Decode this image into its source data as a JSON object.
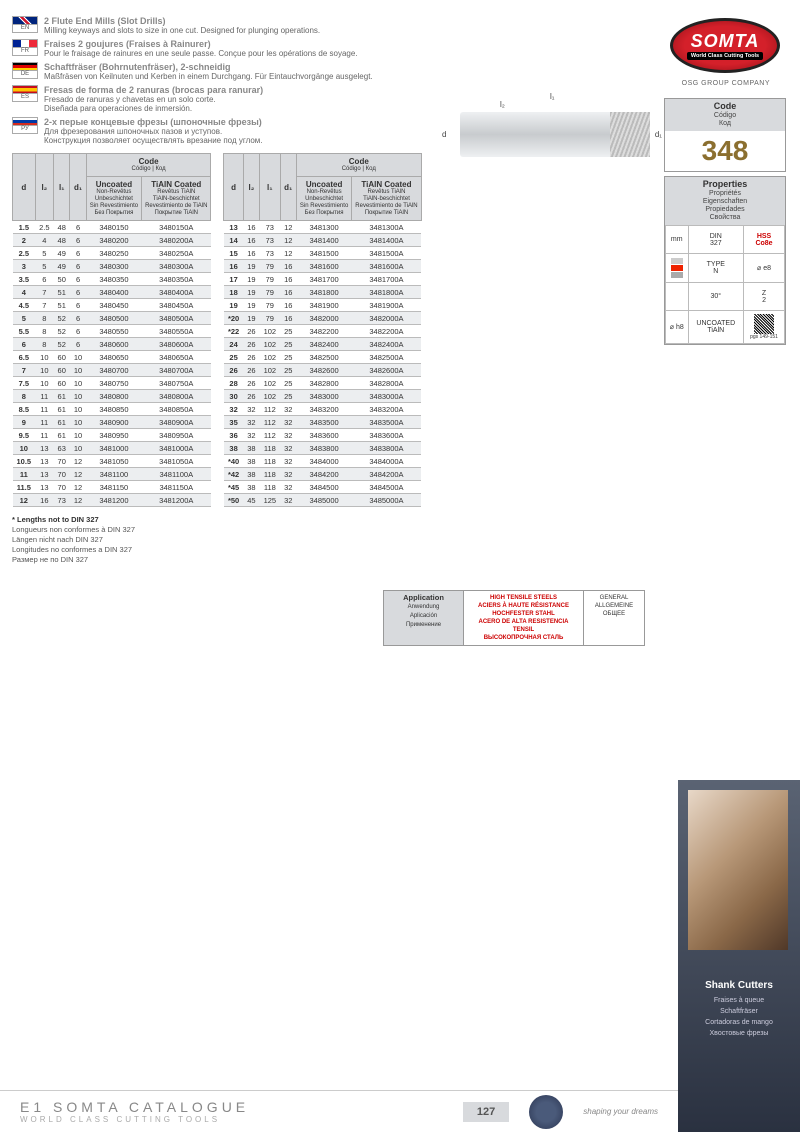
{
  "brand": {
    "name": "SOMTA",
    "tagline": "World Class Cutting Tools",
    "group": "OSG GROUP COMPANY"
  },
  "code": {
    "label": "Code",
    "ml": [
      "Código",
      "Код"
    ],
    "value": "348"
  },
  "properties": {
    "label": "Properties",
    "ml": [
      "Propriétés",
      "Eigenschaften",
      "Propiedades",
      "Свойства"
    ],
    "rows": [
      [
        "mm",
        "DIN\n327",
        "HSS\nCo8e"
      ],
      [
        "",
        "TYPE\nN",
        "⌀ e8"
      ],
      [
        "",
        "30°",
        "Z\n2"
      ],
      [
        "⌀ h8",
        "UNCOATED\nTiAlN",
        ""
      ]
    ],
    "pageref": "pgs 149-151"
  },
  "langs": [
    {
      "code": "EN",
      "title": "2 Flute End Mills (Slot Drills)",
      "desc": "Milling keyways and slots to size in one cut. Designed for plunging operations."
    },
    {
      "code": "FR",
      "title": "Fraises 2 goujures (Fraises à Rainurer)",
      "desc": "Pour le fraisage de rainures en une seule passe. Conçue pour les opérations de soyage."
    },
    {
      "code": "DE",
      "title": "Schaftfräser (Bohrnutenfräser), 2-schneidig",
      "desc": "Maßfräsen von Keilnuten und Kerben in einem Durchgang. Für Eintauchvorgänge ausgelegt."
    },
    {
      "code": "ES",
      "title": "Fresas de forma de 2 ranuras (brocas para ranurar)",
      "desc": "Fresado de ranuras y chavetas en un solo corte.\nDiseñada para operaciones de inmersión."
    },
    {
      "code": "РУ",
      "title": "2-х перые концевые фрезы (шпоночные фрезы)",
      "desc": "Для фрезерования шпоночных пазов и уступов.\nКонструкция позволяет осуществлять врезание под углом."
    }
  ],
  "thead": {
    "d": "d",
    "l2": "l₂",
    "l1": "l₁",
    "d1": "d₁",
    "code": "Code",
    "code_ml": "Código | Код",
    "unc": "Uncoated",
    "unc_ml": "Non-Revêtus\nUnbeschichtet\nSin Revestimiento\nБез Покрытия",
    "tia": "TiAlN Coated",
    "tia_ml": "Revêtus TiAlN\nTiAlN-beschichtet\nRevestimiento de TiAlN\nПокрытие TiAlN"
  },
  "table1": [
    [
      "1.5",
      "2.5",
      "48",
      "6",
      "3480150",
      "3480150A"
    ],
    [
      "2",
      "4",
      "48",
      "6",
      "3480200",
      "3480200A"
    ],
    [
      "2.5",
      "5",
      "49",
      "6",
      "3480250",
      "3480250A"
    ],
    [
      "3",
      "5",
      "49",
      "6",
      "3480300",
      "3480300A"
    ],
    [
      "3.5",
      "6",
      "50",
      "6",
      "3480350",
      "3480350A"
    ],
    [
      "4",
      "7",
      "51",
      "6",
      "3480400",
      "3480400A"
    ],
    [
      "4.5",
      "7",
      "51",
      "6",
      "3480450",
      "3480450A"
    ],
    [
      "5",
      "8",
      "52",
      "6",
      "3480500",
      "3480500A"
    ],
    [
      "5.5",
      "8",
      "52",
      "6",
      "3480550",
      "3480550A"
    ],
    [
      "6",
      "8",
      "52",
      "6",
      "3480600",
      "3480600A"
    ],
    [
      "6.5",
      "10",
      "60",
      "10",
      "3480650",
      "3480650A"
    ],
    [
      "7",
      "10",
      "60",
      "10",
      "3480700",
      "3480700A"
    ],
    [
      "7.5",
      "10",
      "60",
      "10",
      "3480750",
      "3480750A"
    ],
    [
      "8",
      "11",
      "61",
      "10",
      "3480800",
      "3480800A"
    ],
    [
      "8.5",
      "11",
      "61",
      "10",
      "3480850",
      "3480850A"
    ],
    [
      "9",
      "11",
      "61",
      "10",
      "3480900",
      "3480900A"
    ],
    [
      "9.5",
      "11",
      "61",
      "10",
      "3480950",
      "3480950A"
    ],
    [
      "10",
      "13",
      "63",
      "10",
      "3481000",
      "3481000A"
    ],
    [
      "10.5",
      "13",
      "70",
      "12",
      "3481050",
      "3481050A"
    ],
    [
      "11",
      "13",
      "70",
      "12",
      "3481100",
      "3481100A"
    ],
    [
      "11.5",
      "13",
      "70",
      "12",
      "3481150",
      "3481150A"
    ],
    [
      "12",
      "16",
      "73",
      "12",
      "3481200",
      "3481200A"
    ]
  ],
  "table2": [
    [
      "13",
      "16",
      "73",
      "12",
      "3481300",
      "3481300A"
    ],
    [
      "14",
      "16",
      "73",
      "12",
      "3481400",
      "3481400A"
    ],
    [
      "15",
      "16",
      "73",
      "12",
      "3481500",
      "3481500A"
    ],
    [
      "16",
      "19",
      "79",
      "16",
      "3481600",
      "3481600A"
    ],
    [
      "17",
      "19",
      "79",
      "16",
      "3481700",
      "3481700A"
    ],
    [
      "18",
      "19",
      "79",
      "16",
      "3481800",
      "3481800A"
    ],
    [
      "19",
      "19",
      "79",
      "16",
      "3481900",
      "3481900A"
    ],
    [
      "*20",
      "19",
      "79",
      "16",
      "3482000",
      "3482000A"
    ],
    [
      "*22",
      "26",
      "102",
      "25",
      "3482200",
      "3482200A"
    ],
    [
      "24",
      "26",
      "102",
      "25",
      "3482400",
      "3482400A"
    ],
    [
      "25",
      "26",
      "102",
      "25",
      "3482500",
      "3482500A"
    ],
    [
      "26",
      "26",
      "102",
      "25",
      "3482600",
      "3482600A"
    ],
    [
      "28",
      "26",
      "102",
      "25",
      "3482800",
      "3482800A"
    ],
    [
      "30",
      "26",
      "102",
      "25",
      "3483000",
      "3483000A"
    ],
    [
      "32",
      "32",
      "112",
      "32",
      "3483200",
      "3483200A"
    ],
    [
      "35",
      "32",
      "112",
      "32",
      "3483500",
      "3483500A"
    ],
    [
      "36",
      "32",
      "112",
      "32",
      "3483600",
      "3483600A"
    ],
    [
      "38",
      "38",
      "118",
      "32",
      "3483800",
      "3483800A"
    ],
    [
      "*40",
      "38",
      "118",
      "32",
      "3484000",
      "3484000A"
    ],
    [
      "*42",
      "38",
      "118",
      "32",
      "3484200",
      "3484200A"
    ],
    [
      "*45",
      "38",
      "118",
      "32",
      "3484500",
      "3484500A"
    ],
    [
      "*50",
      "45",
      "125",
      "32",
      "3485000",
      "3485000A"
    ]
  ],
  "footnote": {
    "star": "* Lengths not to DIN 327",
    "lines": [
      "Longueurs non conformes à DIN 327",
      "Längen nicht nach DIN 327",
      "Longitudes no conformes a DIN 327",
      "Размер не по DIN 327"
    ]
  },
  "application": {
    "hd": "Application",
    "ml": [
      "Anwendung",
      "Aplicación",
      "Применение"
    ],
    "red": [
      "HIGH TENSILE STEELS",
      "ACIERS À HAUTE RÉSISTANCE",
      "HOCHFESTER STAHL",
      "ACERO DE ALTA RESISTENCIA TENSIL",
      "ВЫСОКОПРОЧНАЯ СТАЛЬ"
    ],
    "gen": [
      "GENERAL",
      "ALLGEMEINE",
      "ОБЩЕЕ"
    ]
  },
  "rightcol": {
    "title": "Shank Cutters",
    "ml": [
      "Fraises à queue",
      "Schaftfräser",
      "Cortadoras de mango",
      "Хвостовые фрезы"
    ]
  },
  "footer": {
    "cat": "E1 SOMTA CATALOGUE",
    "sub": "WORLD CLASS CUTTING TOOLS",
    "page": "127",
    "tag": "shaping your dreams"
  }
}
